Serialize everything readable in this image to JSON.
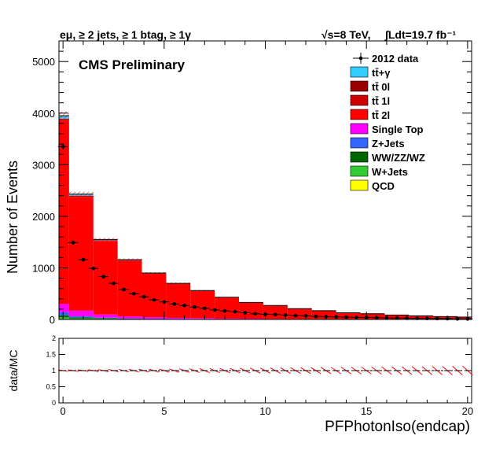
{
  "header": {
    "selection": "eμ, ≥ 2 jets, ≥ 1 btag, ≥ 1γ",
    "energy": "√s=8 TeV,",
    "lumi": "∫Ldt=19.7 fb⁻¹"
  },
  "stamp": "CMS Preliminary",
  "chart_data": [
    {
      "type": "bar",
      "subtype": "stacked-histogram",
      "xlabel": "PFPhotonIso(endcap)",
      "ylabel": "Number of Events",
      "xlim": [
        -0.2,
        20.2
      ],
      "ylim": [
        0,
        5400
      ],
      "xticks": [
        0,
        5,
        10,
        15,
        20
      ],
      "yticks": [
        0,
        1000,
        2000,
        3000,
        4000,
        5000
      ],
      "bin_edges": [
        -0.2,
        0.3,
        1.5,
        2.7,
        3.9,
        5.1,
        6.3,
        7.5,
        8.7,
        9.9,
        11.1,
        12.3,
        13.5,
        14.7,
        15.9,
        17.1,
        18.3,
        19.5,
        20.2
      ],
      "mc_total": [
        3950,
        2430,
        1550,
        1160,
        900,
        700,
        560,
        430,
        330,
        270,
        210,
        170,
        130,
        110,
        85,
        70,
        55,
        45
      ],
      "series": [
        {
          "name": "tt̄+γ",
          "color": "#33ccff",
          "values": [
            60,
            30,
            15,
            10,
            8,
            6,
            5,
            4,
            3,
            2,
            2,
            2,
            1,
            1,
            1,
            1,
            1,
            1
          ]
        },
        {
          "name": "tt̄ 0l",
          "color": "#990000",
          "values": [
            5,
            3,
            2,
            2,
            1,
            1,
            1,
            1,
            1,
            1,
            0,
            0,
            0,
            0,
            0,
            0,
            0,
            0
          ]
        },
        {
          "name": "tt̄ 1l",
          "color": "#cc0000",
          "values": [
            30,
            20,
            12,
            9,
            7,
            5,
            4,
            3,
            2,
            2,
            2,
            1,
            1,
            1,
            1,
            1,
            1,
            1
          ]
        },
        {
          "name": "tt̄ 2l",
          "color": "#ff0000",
          "values": [
            3555,
            2207,
            1426,
            1079,
            840,
            657,
            525,
            405,
            310,
            255,
            198,
            161,
            123,
            104,
            80,
            66,
            51,
            41
          ]
        },
        {
          "name": "Single Top",
          "color": "#ff00ff",
          "values": [
            160,
            110,
            60,
            40,
            30,
            20,
            15,
            10,
            8,
            6,
            5,
            4,
            3,
            2,
            2,
            1,
            1,
            1
          ]
        },
        {
          "name": "Z+Jets",
          "color": "#3366ff",
          "values": [
            60,
            20,
            10,
            6,
            5,
            4,
            3,
            2,
            2,
            1,
            1,
            1,
            1,
            1,
            0,
            0,
            0,
            0
          ]
        },
        {
          "name": "WW/ZZ/WZ",
          "color": "#006600",
          "values": [
            40,
            20,
            10,
            7,
            5,
            3,
            3,
            2,
            1,
            1,
            1,
            0,
            0,
            0,
            0,
            0,
            0,
            0
          ]
        },
        {
          "name": "W+Jets",
          "color": "#33cc33",
          "values": [
            40,
            20,
            15,
            7,
            4,
            4,
            4,
            3,
            3,
            2,
            1,
            1,
            1,
            1,
            1,
            1,
            1,
            1
          ]
        },
        {
          "name": "QCD",
          "color": "#ffff00",
          "values": [
            0,
            0,
            0,
            0,
            0,
            0,
            0,
            0,
            0,
            0,
            0,
            0,
            0,
            0,
            0,
            0,
            0,
            0
          ]
        }
      ],
      "data_points": {
        "name": "2012 data",
        "x": [
          0.0,
          0.5,
          1.0,
          1.5,
          2.0,
          2.5,
          3.0,
          3.5,
          4.0,
          4.5,
          5.0,
          5.5,
          6.0,
          6.5,
          7.0,
          7.5,
          8.0,
          8.5,
          9.0,
          9.5,
          10.0,
          10.5,
          11.0,
          11.5,
          12.0,
          12.5,
          13.0,
          13.5,
          14.0,
          14.5,
          15.0,
          15.5,
          16.0,
          16.5,
          17.0,
          17.5,
          18.0,
          18.5,
          19.0,
          19.5,
          20.0
        ],
        "y": [
          3350,
          1490,
          1160,
          990,
          830,
          700,
          580,
          500,
          440,
          380,
          340,
          300,
          270,
          240,
          215,
          185,
          165,
          150,
          130,
          110,
          100,
          95,
          85,
          75,
          70,
          60,
          55,
          50,
          45,
          40,
          38,
          35,
          30,
          28,
          25,
          22,
          20,
          18,
          15,
          12,
          10
        ]
      },
      "legend": {
        "placement": "top-right"
      }
    },
    {
      "type": "scatter",
      "subtype": "ratio-panel",
      "ylabel": "data/MC",
      "xlim": [
        -0.2,
        20.2
      ],
      "ylim": [
        0,
        2
      ],
      "xticks": [
        0,
        5,
        10,
        15,
        20
      ],
      "yticks": [
        0,
        0.5,
        1,
        1.5,
        2
      ],
      "reference_line": 1,
      "x": [
        0.0,
        0.5,
        1.0,
        1.5,
        2.0,
        2.5,
        3.0,
        3.5,
        4.0,
        4.5,
        5.0,
        5.5,
        6.0,
        6.5,
        7.0,
        7.5,
        8.0,
        8.5,
        9.0,
        9.5,
        10.0,
        10.5,
        11.0,
        11.5,
        12.0,
        12.5,
        13.0,
        13.5,
        14.0,
        14.5,
        15.0,
        15.5,
        16.0,
        16.5,
        17.0,
        17.5,
        18.0,
        18.5,
        19.0,
        19.5,
        20.0
      ],
      "ratio": [
        1.0,
        1.0,
        1.0,
        1.0,
        1.0,
        1.0,
        1.0,
        1.0,
        1.0,
        1.0,
        1.0,
        1.0,
        1.0,
        1.0,
        1.0,
        1.0,
        1.0,
        1.0,
        1.0,
        1.0,
        1.0,
        1.0,
        1.0,
        1.0,
        1.0,
        1.0,
        1.0,
        1.0,
        1.0,
        1.0,
        1.0,
        1.0,
        1.0,
        1.0,
        1.0,
        1.0,
        1.0,
        1.0,
        1.0,
        1.0,
        1.0
      ]
    }
  ],
  "colors": {
    "uncertainty_hatch": "#ff0000",
    "frame": "#000000"
  }
}
